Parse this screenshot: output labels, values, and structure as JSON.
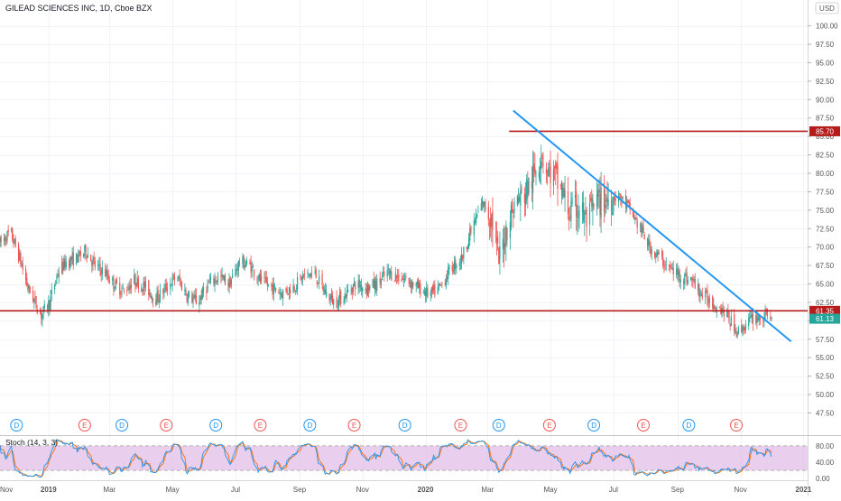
{
  "header": {
    "title": "GILEAD SCIENCES INC, 1D, Cboe BZX",
    "currency": "USD"
  },
  "chart_data": {
    "type": "candlestick",
    "symbol": "GILEAD SCIENCES INC",
    "interval": "1D",
    "exchange": "Cboe BZX",
    "price_axis": {
      "ylim": [
        44.5,
        103.5
      ],
      "ticks": [
        "47.50",
        "50.00",
        "52.50",
        "55.00",
        "57.50",
        "60.00",
        "62.50",
        "65.00",
        "67.50",
        "70.00",
        "72.50",
        "75.00",
        "77.50",
        "80.00",
        "82.50",
        "85.00",
        "87.50",
        "90.00",
        "92.50",
        "95.00",
        "97.50",
        "100.00"
      ]
    },
    "time_axis": {
      "xlim": [
        "2018-11-15",
        "2021-01-05"
      ],
      "labels": [
        {
          "date": "2018-11-01",
          "text": "Nov"
        },
        {
          "date": "2019-01-01",
          "text": "2019"
        },
        {
          "date": "2019-03-01",
          "text": "Mar"
        },
        {
          "date": "2019-05-01",
          "text": "May"
        },
        {
          "date": "2019-07-01",
          "text": "Jul"
        },
        {
          "date": "2019-09-01",
          "text": "Sep"
        },
        {
          "date": "2019-11-01",
          "text": "Nov"
        },
        {
          "date": "2020-01-01",
          "text": "2020"
        },
        {
          "date": "2020-03-01",
          "text": "Mar"
        },
        {
          "date": "2020-05-01",
          "text": "May"
        },
        {
          "date": "2020-07-01",
          "text": "Jul"
        },
        {
          "date": "2020-09-01",
          "text": "Sep"
        },
        {
          "date": "2020-11-01",
          "text": "Nov"
        },
        {
          "date": "2021-01-01",
          "text": "2021"
        }
      ]
    },
    "price_path": [
      [
        "2018-11-15",
        70.5
      ],
      [
        "2018-11-25",
        72.0
      ],
      [
        "2018-12-04",
        68.5
      ],
      [
        "2018-12-12",
        64.5
      ],
      [
        "2018-12-19",
        62.5
      ],
      [
        "2018-12-25",
        60.8
      ],
      [
        "2019-01-02",
        62.5
      ],
      [
        "2019-01-10",
        66.5
      ],
      [
        "2019-01-18",
        68.0
      ],
      [
        "2019-01-28",
        68.5
      ],
      [
        "2019-02-06",
        69.5
      ],
      [
        "2019-02-15",
        67.5
      ],
      [
        "2019-02-25",
        66.5
      ],
      [
        "2019-03-05",
        65.0
      ],
      [
        "2019-03-15",
        64.0
      ],
      [
        "2019-03-25",
        65.5
      ],
      [
        "2019-04-05",
        64.5
      ],
      [
        "2019-04-15",
        63.0
      ],
      [
        "2019-04-25",
        64.5
      ],
      [
        "2019-05-05",
        66.0
      ],
      [
        "2019-05-15",
        63.5
      ],
      [
        "2019-05-25",
        62.5
      ],
      [
        "2019-06-05",
        65.0
      ],
      [
        "2019-06-15",
        66.0
      ],
      [
        "2019-06-25",
        65.0
      ],
      [
        "2019-07-05",
        68.0
      ],
      [
        "2019-07-15",
        67.5
      ],
      [
        "2019-07-25",
        65.5
      ],
      [
        "2019-08-05",
        64.5
      ],
      [
        "2019-08-15",
        63.8
      ],
      [
        "2019-08-25",
        64.5
      ],
      [
        "2019-09-05",
        66.0
      ],
      [
        "2019-09-15",
        66.5
      ],
      [
        "2019-09-25",
        64.0
      ],
      [
        "2019-10-05",
        62.5
      ],
      [
        "2019-10-15",
        63.5
      ],
      [
        "2019-10-25",
        65.0
      ],
      [
        "2019-11-05",
        64.5
      ],
      [
        "2019-11-15",
        65.0
      ],
      [
        "2019-11-25",
        66.5
      ],
      [
        "2019-12-05",
        66.0
      ],
      [
        "2019-12-15",
        65.5
      ],
      [
        "2019-12-25",
        64.5
      ],
      [
        "2020-01-05",
        63.5
      ],
      [
        "2020-01-15",
        64.5
      ],
      [
        "2020-01-25",
        67.0
      ],
      [
        "2020-02-05",
        68.5
      ],
      [
        "2020-02-15",
        72.5
      ],
      [
        "2020-02-25",
        76.0
      ],
      [
        "2020-03-05",
        74.0
      ],
      [
        "2020-03-12",
        68.0
      ],
      [
        "2020-03-20",
        73.0
      ],
      [
        "2020-03-28",
        76.0
      ],
      [
        "2020-04-05",
        77.0
      ],
      [
        "2020-04-15",
        79.5
      ],
      [
        "2020-04-22",
        83.0
      ],
      [
        "2020-04-28",
        80.5
      ],
      [
        "2020-05-05",
        79.5
      ],
      [
        "2020-05-12",
        77.5
      ],
      [
        "2020-05-20",
        74.5
      ],
      [
        "2020-05-28",
        75.5
      ],
      [
        "2020-06-05",
        73.5
      ],
      [
        "2020-06-15",
        76.0
      ],
      [
        "2020-06-25",
        76.5
      ],
      [
        "2020-07-05",
        77.0
      ],
      [
        "2020-07-15",
        75.5
      ],
      [
        "2020-07-25",
        73.0
      ],
      [
        "2020-08-05",
        70.0
      ],
      [
        "2020-08-15",
        68.5
      ],
      [
        "2020-08-25",
        67.0
      ],
      [
        "2020-09-05",
        66.0
      ],
      [
        "2020-09-15",
        65.5
      ],
      [
        "2020-09-25",
        63.5
      ],
      [
        "2020-10-05",
        62.5
      ],
      [
        "2020-10-15",
        61.5
      ],
      [
        "2020-10-22",
        60.0
      ],
      [
        "2020-10-30",
        58.5
      ],
      [
        "2020-11-06",
        59.5
      ],
      [
        "2020-11-14",
        60.5
      ],
      [
        "2020-11-22",
        60.3
      ],
      [
        "2020-12-01",
        61.1
      ]
    ],
    "horizontal_lines": [
      {
        "value": 85.7,
        "color": "#b71c1c",
        "from": "2020-03-22"
      },
      {
        "value": 61.35,
        "color": "#b71c1c",
        "from": "2018-11-05"
      }
    ],
    "trend_line": {
      "start": [
        "2020-03-26",
        88.5
      ],
      "end": [
        "2020-12-20",
        57.2
      ],
      "color": "#2196f3"
    },
    "last_price": {
      "value": "61.13",
      "color": "#26a69a"
    },
    "price_labels": [
      {
        "value": "85.70",
        "price": 85.7,
        "color": "#b71c1c"
      },
      {
        "value": "61.35",
        "price": 61.35,
        "color": "#b71c1c"
      }
    ],
    "events": [
      {
        "type": "D",
        "date": "2018-12-01"
      },
      {
        "type": "E",
        "date": "2019-02-05"
      },
      {
        "type": "D",
        "date": "2019-03-13"
      },
      {
        "type": "E",
        "date": "2019-04-25"
      },
      {
        "type": "D",
        "date": "2019-06-12"
      },
      {
        "type": "E",
        "date": "2019-07-25"
      },
      {
        "type": "D",
        "date": "2019-09-11"
      },
      {
        "type": "E",
        "date": "2019-10-24"
      },
      {
        "type": "D",
        "date": "2019-12-12"
      },
      {
        "type": "E",
        "date": "2020-02-04"
      },
      {
        "type": "D",
        "date": "2020-03-12"
      },
      {
        "type": "E",
        "date": "2020-04-30"
      },
      {
        "type": "D",
        "date": "2020-06-12"
      },
      {
        "type": "E",
        "date": "2020-07-30"
      },
      {
        "type": "D",
        "date": "2020-09-12"
      },
      {
        "type": "E",
        "date": "2020-10-28"
      }
    ],
    "oscillator": {
      "name": "Stoch (14, 3, 3)",
      "ylim": [
        -4,
        104
      ],
      "ticks": [
        "80.00",
        "40.00",
        "0.00"
      ],
      "band": [
        20,
        80
      ],
      "k_color": "#2196f3",
      "d_color": "#ff6d00",
      "band_color": "#e1bee7"
    }
  }
}
